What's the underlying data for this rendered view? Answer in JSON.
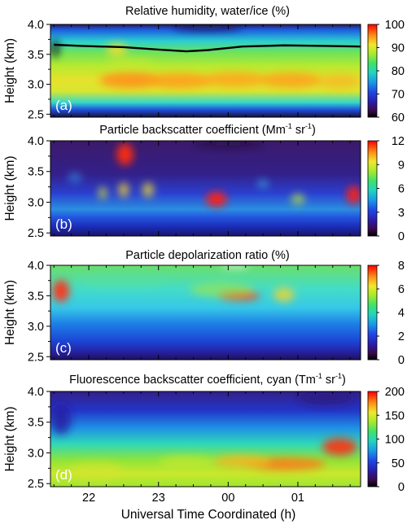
{
  "chart_data": {
    "type": "heatmap",
    "x_label": "Universal Time Coordinated (h)",
    "x_ticks": [
      "22",
      "23",
      "00",
      "01"
    ],
    "y_label": "Height (km)",
    "y_ticks": [
      "2.5",
      "3.0",
      "3.5",
      "4.0"
    ],
    "ylim": [
      2.45,
      4.0
    ],
    "panels": [
      {
        "tag": "(a)",
        "title": "Relative humidity, water/ice (%)",
        "title_sup": "",
        "title_end": "",
        "colorbar_ticks": [
          "60",
          "70",
          "80",
          "90",
          "100"
        ],
        "colorbar_range": [
          60,
          100
        ],
        "overlay_line": {
          "x_utc": [
            21.5,
            21.9,
            22.5,
            23.0,
            23.4,
            23.7,
            24.2,
            24.8,
            25.4,
            25.9
          ],
          "height_km": [
            3.66,
            3.64,
            3.62,
            3.58,
            3.55,
            3.57,
            3.63,
            3.65,
            3.64,
            3.63
          ]
        },
        "palette": "humidity"
      },
      {
        "tag": "(b)",
        "title": "Particle backscatter coefficient (Mm",
        "title_sup": "-1",
        "title_end": " sr",
        "title_sup2": "-1",
        "title_close": ")",
        "colorbar_ticks": [
          "0",
          "3",
          "6",
          "9",
          "12"
        ],
        "colorbar_range": [
          0,
          12
        ],
        "palette": "backscatter"
      },
      {
        "tag": "(c)",
        "title": "Particle depolarization ratio (%)",
        "title_sup": "",
        "title_end": "",
        "colorbar_ticks": [
          "0",
          "2",
          "4",
          "6",
          "8"
        ],
        "colorbar_range": [
          0,
          8
        ],
        "palette": "depol"
      },
      {
        "tag": "(d)",
        "title": "Fluorescence backscatter coefficient, cyan (Tm",
        "title_sup": "-1",
        "title_end": " sr",
        "title_sup2": "-1",
        "title_close": ")",
        "colorbar_ticks": [
          "0",
          "50",
          "100",
          "150",
          "200"
        ],
        "colorbar_range": [
          0,
          200
        ],
        "palette": "fluor"
      }
    ]
  }
}
